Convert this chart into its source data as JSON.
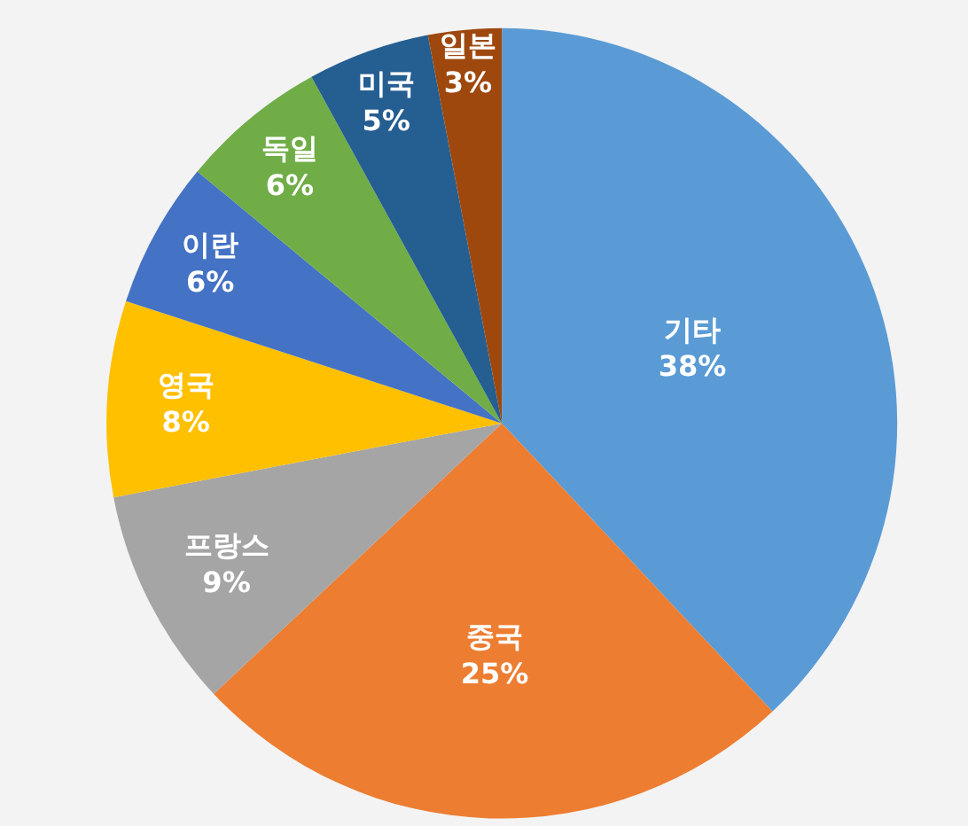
{
  "chart_data": {
    "type": "pie",
    "categories": [
      "기타",
      "중국",
      "프랑스",
      "영국",
      "이란",
      "독일",
      "미국",
      "일본"
    ],
    "values": [
      38,
      25,
      9,
      8,
      6,
      6,
      5,
      3
    ],
    "value_labels": [
      "38%",
      "25%",
      "9%",
      "8%",
      "6%",
      "6%",
      "5%",
      "3%"
    ],
    "colors": [
      "#5b9bd5",
      "#ed7d31",
      "#a5a5a5",
      "#ffc000",
      "#4472c4",
      "#70ad47",
      "#255e91",
      "#9e480e"
    ],
    "legend": false
  }
}
